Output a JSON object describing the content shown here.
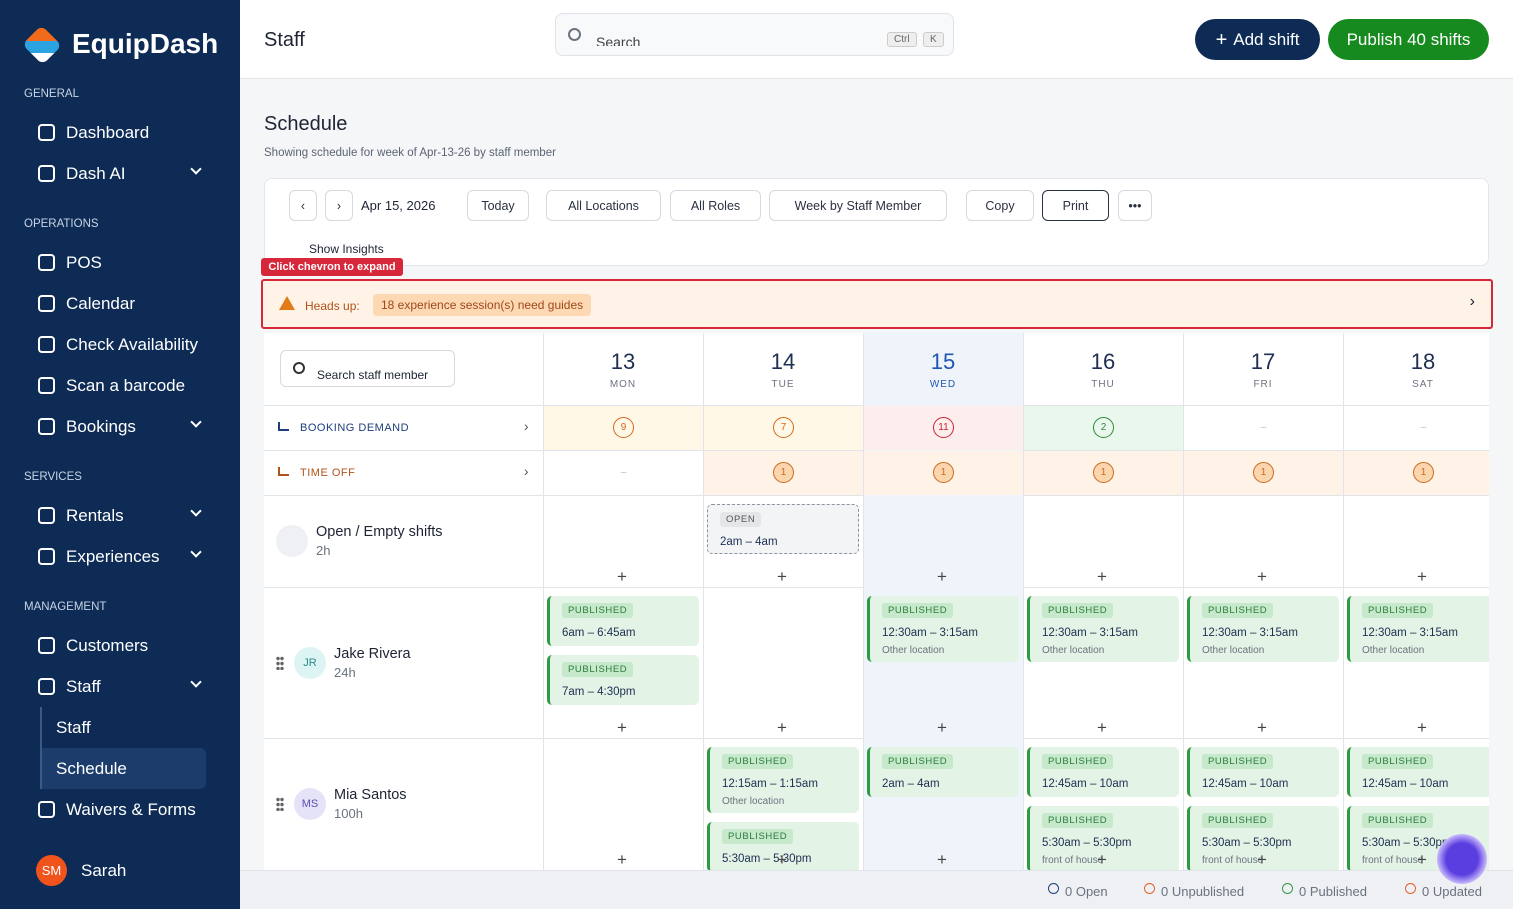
{
  "brand": "EquipDash",
  "sidebar": [
    {
      "heading": "GENERAL",
      "items": [
        {
          "label": "Dashboard"
        },
        {
          "label": "Dash AI",
          "expandable": true
        }
      ]
    },
    {
      "heading": "OPERATIONS",
      "items": [
        {
          "label": "POS"
        },
        {
          "label": "Calendar"
        },
        {
          "label": "Check Availability"
        },
        {
          "label": "Scan a barcode"
        },
        {
          "label": "Bookings",
          "expandable": true
        }
      ]
    },
    {
      "heading": "SERVICES",
      "items": [
        {
          "label": "Rentals",
          "expandable": true
        },
        {
          "label": "Experiences",
          "expandable": true
        }
      ]
    },
    {
      "heading": "MANAGEMENT",
      "items": [
        {
          "label": "Customers"
        },
        {
          "label": "Staff",
          "expandable": true,
          "children": [
            "Staff",
            "Schedule"
          ]
        },
        {
          "label": "Waivers & Forms"
        }
      ]
    }
  ],
  "user": {
    "initials": "SM",
    "name": "Sarah"
  },
  "header": {
    "title": "Staff",
    "search": "Search",
    "keys": [
      "Ctrl",
      "K"
    ],
    "add_shift": "Add shift",
    "publish": "Publish 40 shifts"
  },
  "schedule": {
    "title": "Schedule",
    "subtitle": "Showing schedule for week of Apr-13-26 by staff member"
  },
  "toolbar": {
    "date": "Apr 15, 2026",
    "today": "Today",
    "locations": "All Locations",
    "roles": "All Roles",
    "view": "Week by Staff Member",
    "copy": "Copy",
    "print": "Print",
    "insights": "Show Insights"
  },
  "tooltip": "Click chevron to expand",
  "alert": {
    "label": "Heads up:",
    "message": "18 experience session(s) need guides"
  },
  "grid": {
    "search": "Search staff member",
    "days": [
      {
        "num": 13,
        "name": "MON"
      },
      {
        "num": 14,
        "name": "TUE"
      },
      {
        "num": 15,
        "name": "WED"
      },
      {
        "num": 16,
        "name": "THU"
      },
      {
        "num": 17,
        "name": "FRI"
      },
      {
        "num": 18,
        "name": "SAT"
      }
    ],
    "booking_demand": {
      "label": "BOOKING DEMAND",
      "values": [
        9,
        7,
        11,
        2,
        "–",
        "–"
      ]
    },
    "time_off": {
      "label": "TIME OFF",
      "values": [
        "–",
        1,
        1,
        1,
        1,
        1
      ]
    },
    "rows": [
      {
        "name": "Open / Empty shifts",
        "hours": "2h",
        "days": [
          [],
          [
            {
              "status": "OPEN",
              "time": "2am – 4am"
            }
          ],
          [],
          [],
          [],
          []
        ]
      },
      {
        "name": "Jake Rivera",
        "initials": "JR",
        "hours": "24h",
        "days": [
          [
            {
              "status": "PUBLISHED",
              "time": "6am – 6:45am"
            },
            {
              "status": "PUBLISHED",
              "time": "7am – 4:30pm"
            }
          ],
          [],
          [
            {
              "status": "PUBLISHED",
              "time": "12:30am – 3:15am",
              "location": "Other location"
            }
          ],
          [
            {
              "status": "PUBLISHED",
              "time": "12:30am – 3:15am",
              "location": "Other location"
            }
          ],
          [
            {
              "status": "PUBLISHED",
              "time": "12:30am – 3:15am",
              "location": "Other location"
            }
          ],
          [
            {
              "status": "PUBLISHED",
              "time": "12:30am – 3:15am",
              "location": "Other location"
            }
          ]
        ]
      },
      {
        "name": "Mia Santos",
        "initials": "MS",
        "hours": "100h",
        "days": [
          [],
          [
            {
              "status": "PUBLISHED",
              "time": "12:15am – 1:15am",
              "location": "Other location"
            },
            {
              "status": "PUBLISHED",
              "time": "5:30am – 5:30pm"
            }
          ],
          [
            {
              "status": "PUBLISHED",
              "time": "2am – 4am"
            }
          ],
          [
            {
              "status": "PUBLISHED",
              "time": "12:45am – 10am"
            },
            {
              "status": "PUBLISHED",
              "time": "5:30am – 5:30pm",
              "location": "front of house"
            }
          ],
          [
            {
              "status": "PUBLISHED",
              "time": "12:45am – 10am"
            },
            {
              "status": "PUBLISHED",
              "time": "5:30am – 5:30pm",
              "location": "front of house"
            }
          ],
          [
            {
              "status": "PUBLISHED",
              "time": "12:45am – 10am"
            },
            {
              "status": "PUBLISHED",
              "time": "5:30am – 5:30pm",
              "location": "front of house"
            }
          ]
        ]
      }
    ]
  },
  "footer": [
    "0 Open",
    "0 Unpublished",
    "0 Published",
    "0 Updated"
  ]
}
